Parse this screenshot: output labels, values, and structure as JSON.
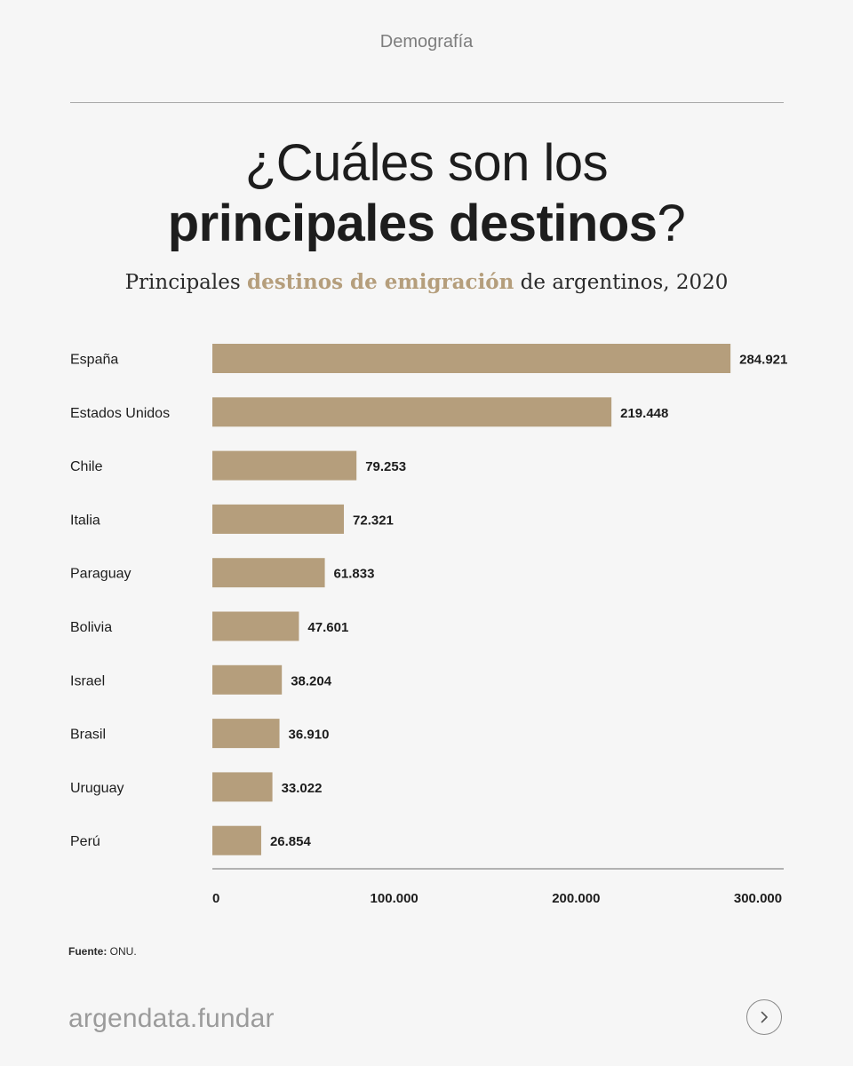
{
  "header": {
    "section": "Demografía"
  },
  "title": {
    "line1": "¿Cuáles son los",
    "line2_bold": "principales destinos",
    "line2_end": "?"
  },
  "subtitle": {
    "before": "Principales ",
    "highlight": "destinos de emigración",
    "after": " de argentinos, 2020"
  },
  "chart_data": {
    "type": "bar",
    "orientation": "horizontal",
    "categories": [
      "España",
      "Estados Unidos",
      "Chile",
      "Italia",
      "Paraguay",
      "Bolivia",
      "Israel",
      "Brasil",
      "Uruguay",
      "Perú"
    ],
    "values": [
      284921,
      219448,
      79253,
      72321,
      61833,
      47601,
      38204,
      36910,
      33022,
      26854
    ],
    "value_labels": [
      "284.921",
      "219.448",
      "79.253",
      "72.321",
      "61.833",
      "47.601",
      "38.204",
      "36.910",
      "33.022",
      "26.854"
    ],
    "x_ticks": [
      0,
      100000,
      200000,
      300000
    ],
    "x_tick_labels": [
      "0",
      "100.000",
      "200.000",
      "300.000"
    ],
    "xlim": [
      0,
      300000
    ],
    "grid": false,
    "bar_color": "#b59e7c"
  },
  "source": {
    "label": "Fuente:",
    "text": " ONU."
  },
  "footer": {
    "brand": "argendata.fundar",
    "next_icon": "chevron-right-icon"
  }
}
